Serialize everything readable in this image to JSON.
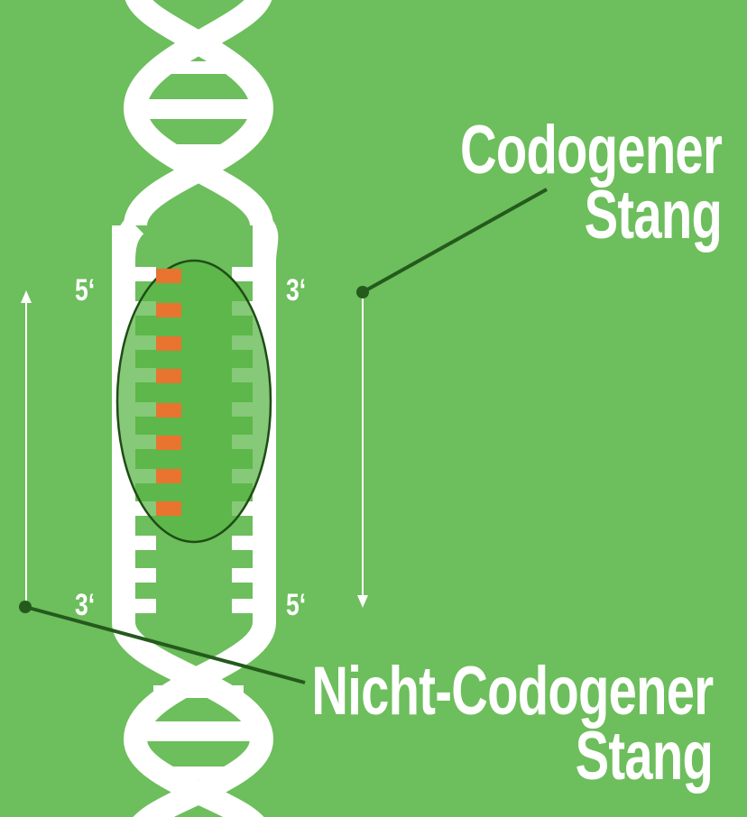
{
  "colors": {
    "background": "#6dbe5c",
    "helix": "#ffffff",
    "highlight_fill": "#57b444",
    "highlight_stroke": "#1e4d16",
    "bases_highlighted": "#e8742f",
    "pointer_line": "#245a1c",
    "arrow": "#ffffff"
  },
  "labels": {
    "codogen_line1": "Codogener",
    "codogen_line2": "Stang",
    "noncodogen_line1": "Nicht-Codogener",
    "noncodogen_line2": "Stang",
    "left_top_end": "5‘",
    "left_bottom_end": "3‘",
    "right_top_end": "3‘",
    "right_bottom_end": "5‘"
  },
  "icons": {
    "helix": "dna-double-helix",
    "highlight": "transcription-bubble-ellipse",
    "arrow_up": "arrow-up-icon",
    "arrow_down": "arrow-down-icon"
  }
}
